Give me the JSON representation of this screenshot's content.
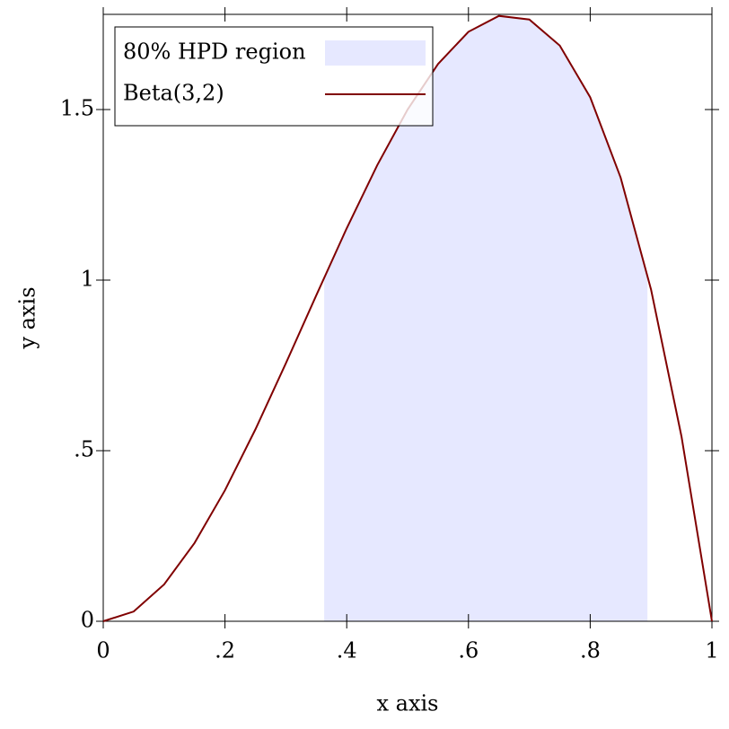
{
  "chart_data": {
    "type": "line",
    "x_label": "x axis",
    "y_label": "y axis",
    "xlim": [
      0,
      1
    ],
    "ylim": [
      0,
      1.779
    ],
    "xticks": [
      0,
      {
        "value": 0.2,
        "label": ".2"
      },
      {
        "value": 0.4,
        "label": ".4"
      },
      {
        "value": 0.6,
        "label": ".6"
      },
      {
        "value": 0.8,
        "label": ".8"
      },
      1
    ],
    "yticks": [
      0,
      {
        "value": 0.5,
        "label": ".5"
      },
      1,
      1.5
    ],
    "legend": "top-left",
    "areas": [
      {
        "name": "80% HPD region",
        "color": "#e6e8ff",
        "x": [
          0.363,
          0.4,
          0.45,
          0.5,
          0.55,
          0.6,
          0.65,
          0.7,
          0.75,
          0.8,
          0.85,
          0.894
        ],
        "values": [
          1.007,
          1.152,
          1.3365,
          1.5,
          1.6335,
          1.728,
          1.7745,
          1.764,
          1.6875,
          1.536,
          1.3005,
          1.017
        ]
      }
    ],
    "series": [
      {
        "name": "Beta(3,2)",
        "color": "#800000",
        "x": [
          0,
          0.05,
          0.1,
          0.15,
          0.2,
          0.25,
          0.3,
          0.35,
          0.4,
          0.45,
          0.5,
          0.55,
          0.6,
          0.65,
          0.7,
          0.75,
          0.8,
          0.85,
          0.9,
          0.95,
          1
        ],
        "values": [
          0,
          0.0285,
          0.108,
          0.2295,
          0.384,
          0.5625,
          0.756,
          0.9555,
          1.152,
          1.3365,
          1.5,
          1.6335,
          1.728,
          1.7745,
          1.764,
          1.6875,
          1.536,
          1.3005,
          0.972,
          0.5415,
          0
        ]
      }
    ]
  }
}
